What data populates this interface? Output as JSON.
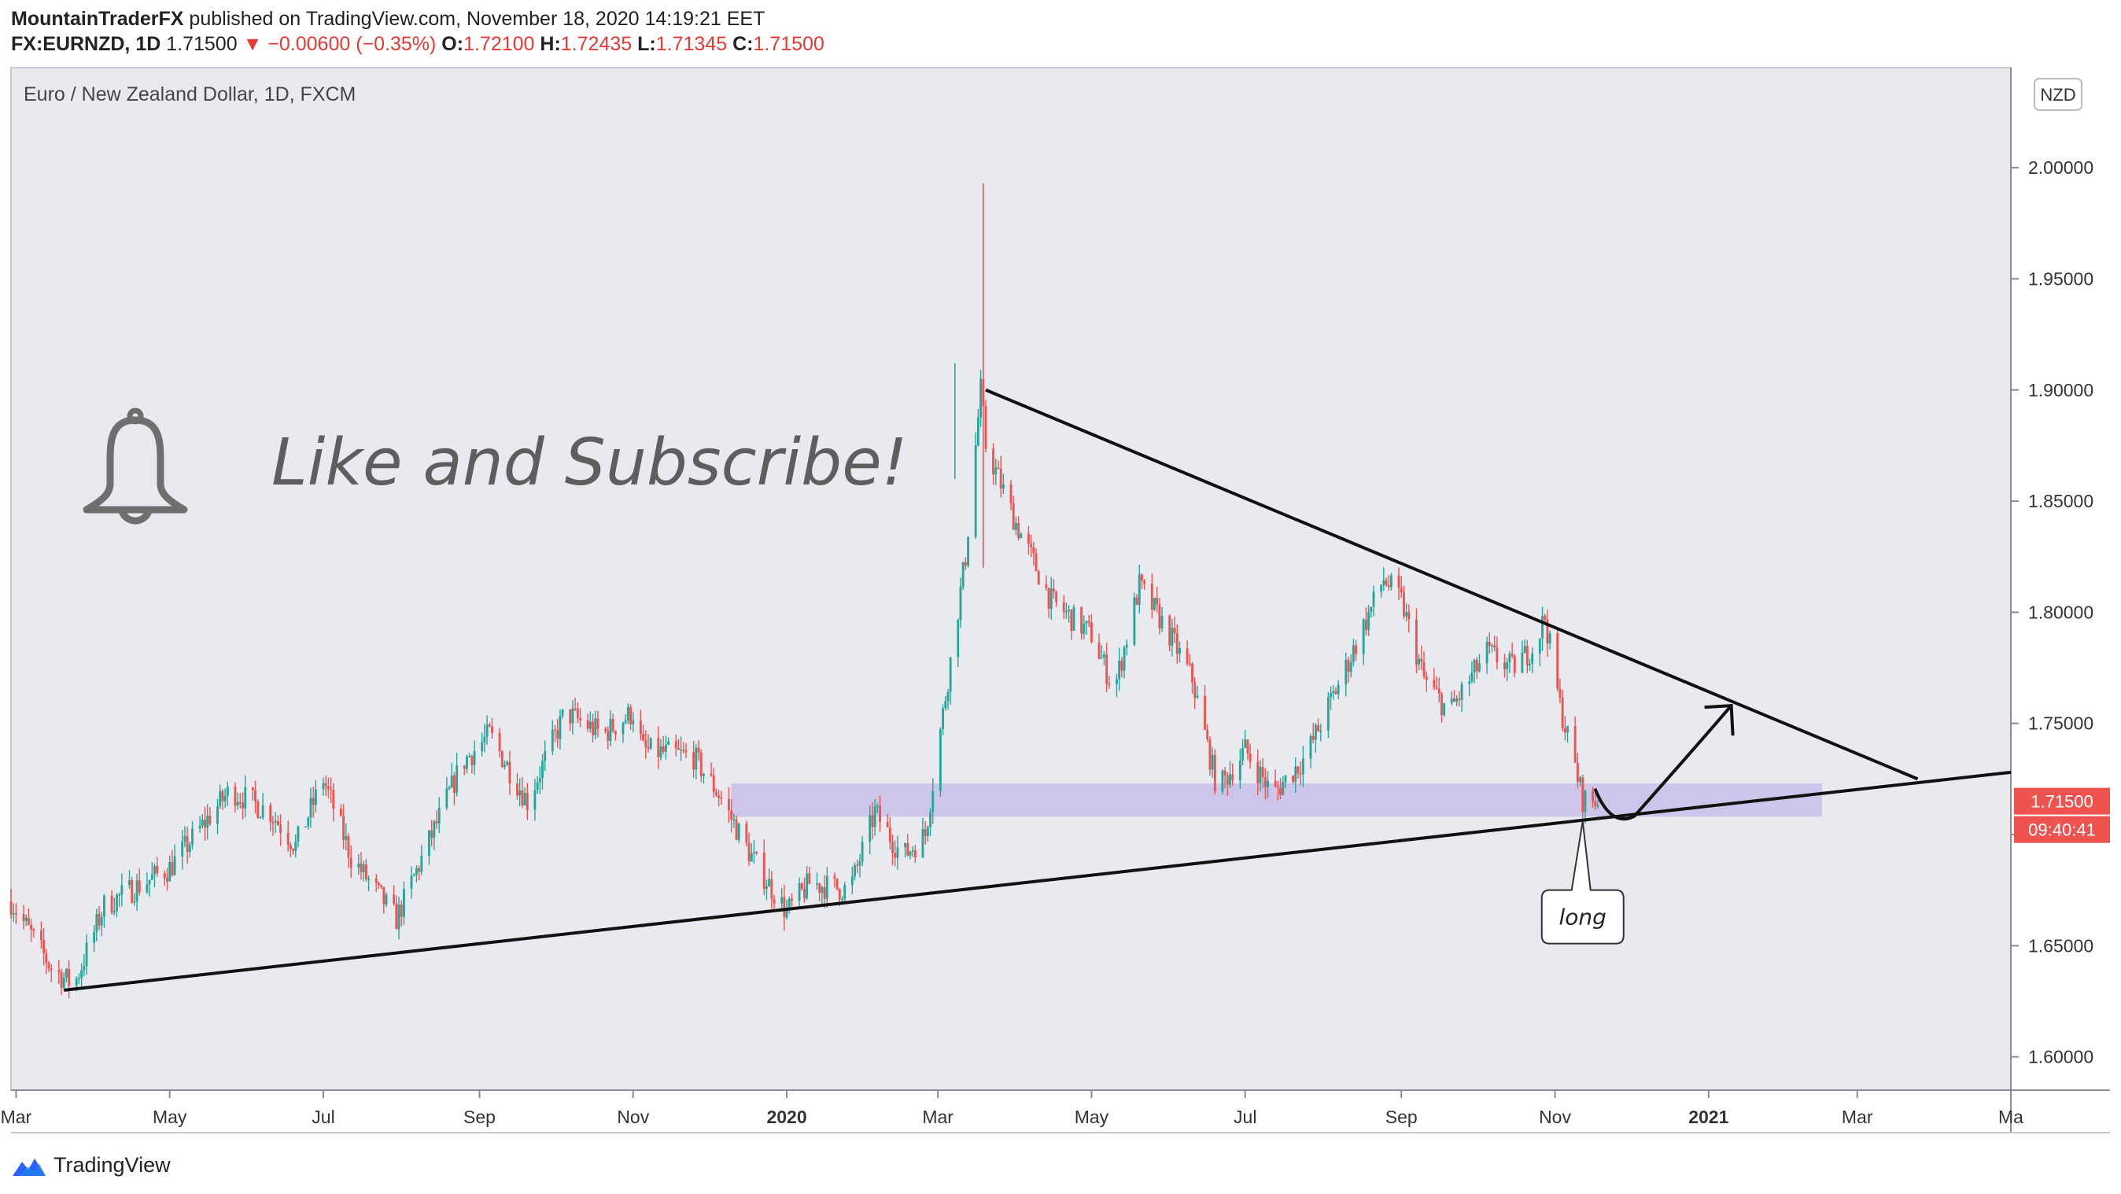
{
  "header": {
    "author": "MountainTraderFX",
    "published_text": "published on TradingView.com, November 18, 2020 14:19:21 EET",
    "symbol": "FX:EURNZD, 1D",
    "last": "1.71500",
    "change": "−0.00600 (−0.35%)",
    "o_label": "O:",
    "open": "1.72100",
    "h_label": "H:",
    "high": "1.72435",
    "l_label": "L:",
    "low": "1.71345",
    "c_label": "C:",
    "close": "1.71500"
  },
  "footer": {
    "brand": "TradingView"
  },
  "chart_data": {
    "type": "candlestick",
    "title": "Euro / New Zealand Dollar, 1D, FXCM",
    "currency": "NZD",
    "ylim": [
      1.585,
      2.045
    ],
    "y_ticks": [
      1.6,
      1.65,
      1.7,
      1.75,
      1.8,
      1.85,
      1.9,
      1.95,
      2.0
    ],
    "y_tick_labels": [
      "1.60000",
      "1.65000",
      "1.70000",
      "1.75000",
      "1.80000",
      "1.85000",
      "1.90000",
      "1.95000",
      "2.00000"
    ],
    "x_tick_labels": [
      "Mar",
      "May",
      "Jul",
      "Sep",
      "Nov",
      "2020",
      "Mar",
      "May",
      "Jul",
      "Sep",
      "Nov",
      "2021",
      "Mar",
      "Ma"
    ],
    "x_tick_dates": [
      "2019-03-01",
      "2019-05-01",
      "2019-07-01",
      "2019-09-01",
      "2019-11-01",
      "2020-01-01",
      "2020-03-01",
      "2020-05-01",
      "2020-07-01",
      "2020-09-01",
      "2020-11-01",
      "2021-01-01",
      "2021-03-01",
      "2021-05-01"
    ],
    "x_range": [
      "2019-02-27",
      "2021-05-01"
    ],
    "price_path": [
      [
        "2019-02-27",
        1.67
      ],
      [
        "2019-03-15",
        1.64
      ],
      [
        "2019-03-24",
        1.632
      ],
      [
        "2019-04-05",
        1.668
      ],
      [
        "2019-05-01",
        1.685
      ],
      [
        "2019-05-25",
        1.72
      ],
      [
        "2019-06-10",
        1.71
      ],
      [
        "2019-06-20",
        1.695
      ],
      [
        "2019-07-01",
        1.725
      ],
      [
        "2019-07-12",
        1.69
      ],
      [
        "2019-07-30",
        1.662
      ],
      [
        "2019-08-15",
        1.705
      ],
      [
        "2019-08-25",
        1.732
      ],
      [
        "2019-09-05",
        1.745
      ],
      [
        "2019-09-20",
        1.715
      ],
      [
        "2019-10-05",
        1.755
      ],
      [
        "2019-10-20",
        1.745
      ],
      [
        "2019-11-01",
        1.755
      ],
      [
        "2019-11-05",
        1.738
      ],
      [
        "2019-11-25",
        1.735
      ],
      [
        "2019-12-05",
        1.718
      ],
      [
        "2019-12-18",
        1.69
      ],
      [
        "2020-01-01",
        1.665
      ],
      [
        "2020-01-10",
        1.678
      ],
      [
        "2020-01-26",
        1.675
      ],
      [
        "2020-02-05",
        1.71
      ],
      [
        "2020-02-16",
        1.69
      ],
      [
        "2020-02-25",
        1.7
      ],
      [
        "2020-03-05",
        1.77
      ],
      [
        "2020-03-12",
        1.825
      ],
      [
        "2020-03-18",
        1.9
      ],
      [
        "2020-03-20",
        1.875
      ],
      [
        "2020-04-01",
        1.84
      ],
      [
        "2020-04-15",
        1.805
      ],
      [
        "2020-05-01",
        1.79
      ],
      [
        "2020-05-10",
        1.765
      ],
      [
        "2020-05-20",
        1.812
      ],
      [
        "2020-06-01",
        1.79
      ],
      [
        "2020-06-10",
        1.77
      ],
      [
        "2020-06-20",
        1.72
      ],
      [
        "2020-07-01",
        1.738
      ],
      [
        "2020-07-12",
        1.718
      ],
      [
        "2020-07-25",
        1.735
      ],
      [
        "2020-08-10",
        1.775
      ],
      [
        "2020-08-25",
        1.815
      ],
      [
        "2020-09-01",
        1.805
      ],
      [
        "2020-09-10",
        1.77
      ],
      [
        "2020-09-20",
        1.755
      ],
      [
        "2020-10-05",
        1.782
      ],
      [
        "2020-10-15",
        1.775
      ],
      [
        "2020-10-24",
        1.785
      ],
      [
        "2020-10-28",
        1.798
      ],
      [
        "2020-11-03",
        1.758
      ],
      [
        "2020-11-08",
        1.735
      ],
      [
        "2020-11-12",
        1.716
      ],
      [
        "2020-11-18",
        1.715
      ]
    ],
    "spike": {
      "date": "2020-03-19",
      "high": 1.993,
      "low": 1.82
    },
    "last_price": "1.71500",
    "countdown": "09:40:41",
    "annotations": {
      "headline": "Like and Subscribe!",
      "callout": "long",
      "support_line": [
        [
          "2019-03-20",
          1.63
        ],
        [
          "2021-05-01",
          1.728
        ]
      ],
      "resistance_line": [
        [
          "2020-03-20",
          1.9
        ],
        [
          "2021-03-25",
          1.725
        ]
      ],
      "zone": {
        "from": "2019-12-10",
        "to": "2021-02-15",
        "y_low": 1.708,
        "y_high": 1.723
      },
      "projection": [
        [
          "2020-11-20",
          1.71
        ],
        [
          "2020-12-20",
          1.735
        ],
        [
          "2021-01-10",
          1.758
        ]
      ]
    }
  }
}
